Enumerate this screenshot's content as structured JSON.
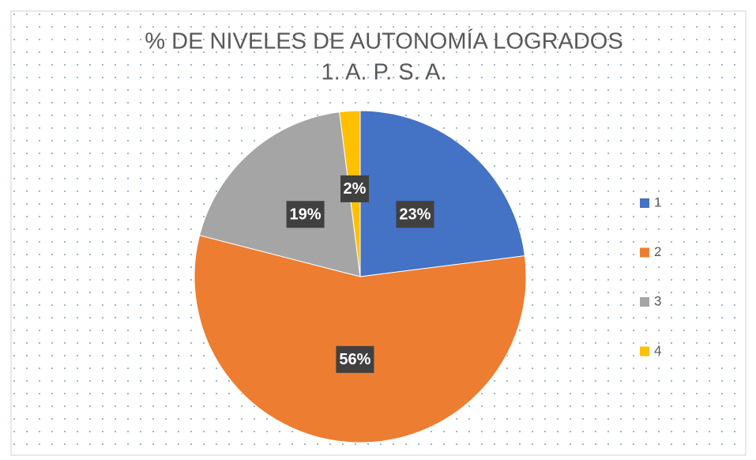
{
  "chart_data": {
    "type": "pie",
    "title": "% DE NIVELES DE AUTONOMÍA LOGRADOS",
    "subtitle": "1. A. P. S. A.",
    "categories": [
      "1",
      "2",
      "3",
      "4"
    ],
    "values": [
      23,
      56,
      19,
      2
    ],
    "value_labels": [
      "23%",
      "56%",
      "19%",
      "2%"
    ],
    "colors": [
      "#4472c4",
      "#ed7d31",
      "#a5a5a5",
      "#ffc000"
    ],
    "legend": "right"
  }
}
